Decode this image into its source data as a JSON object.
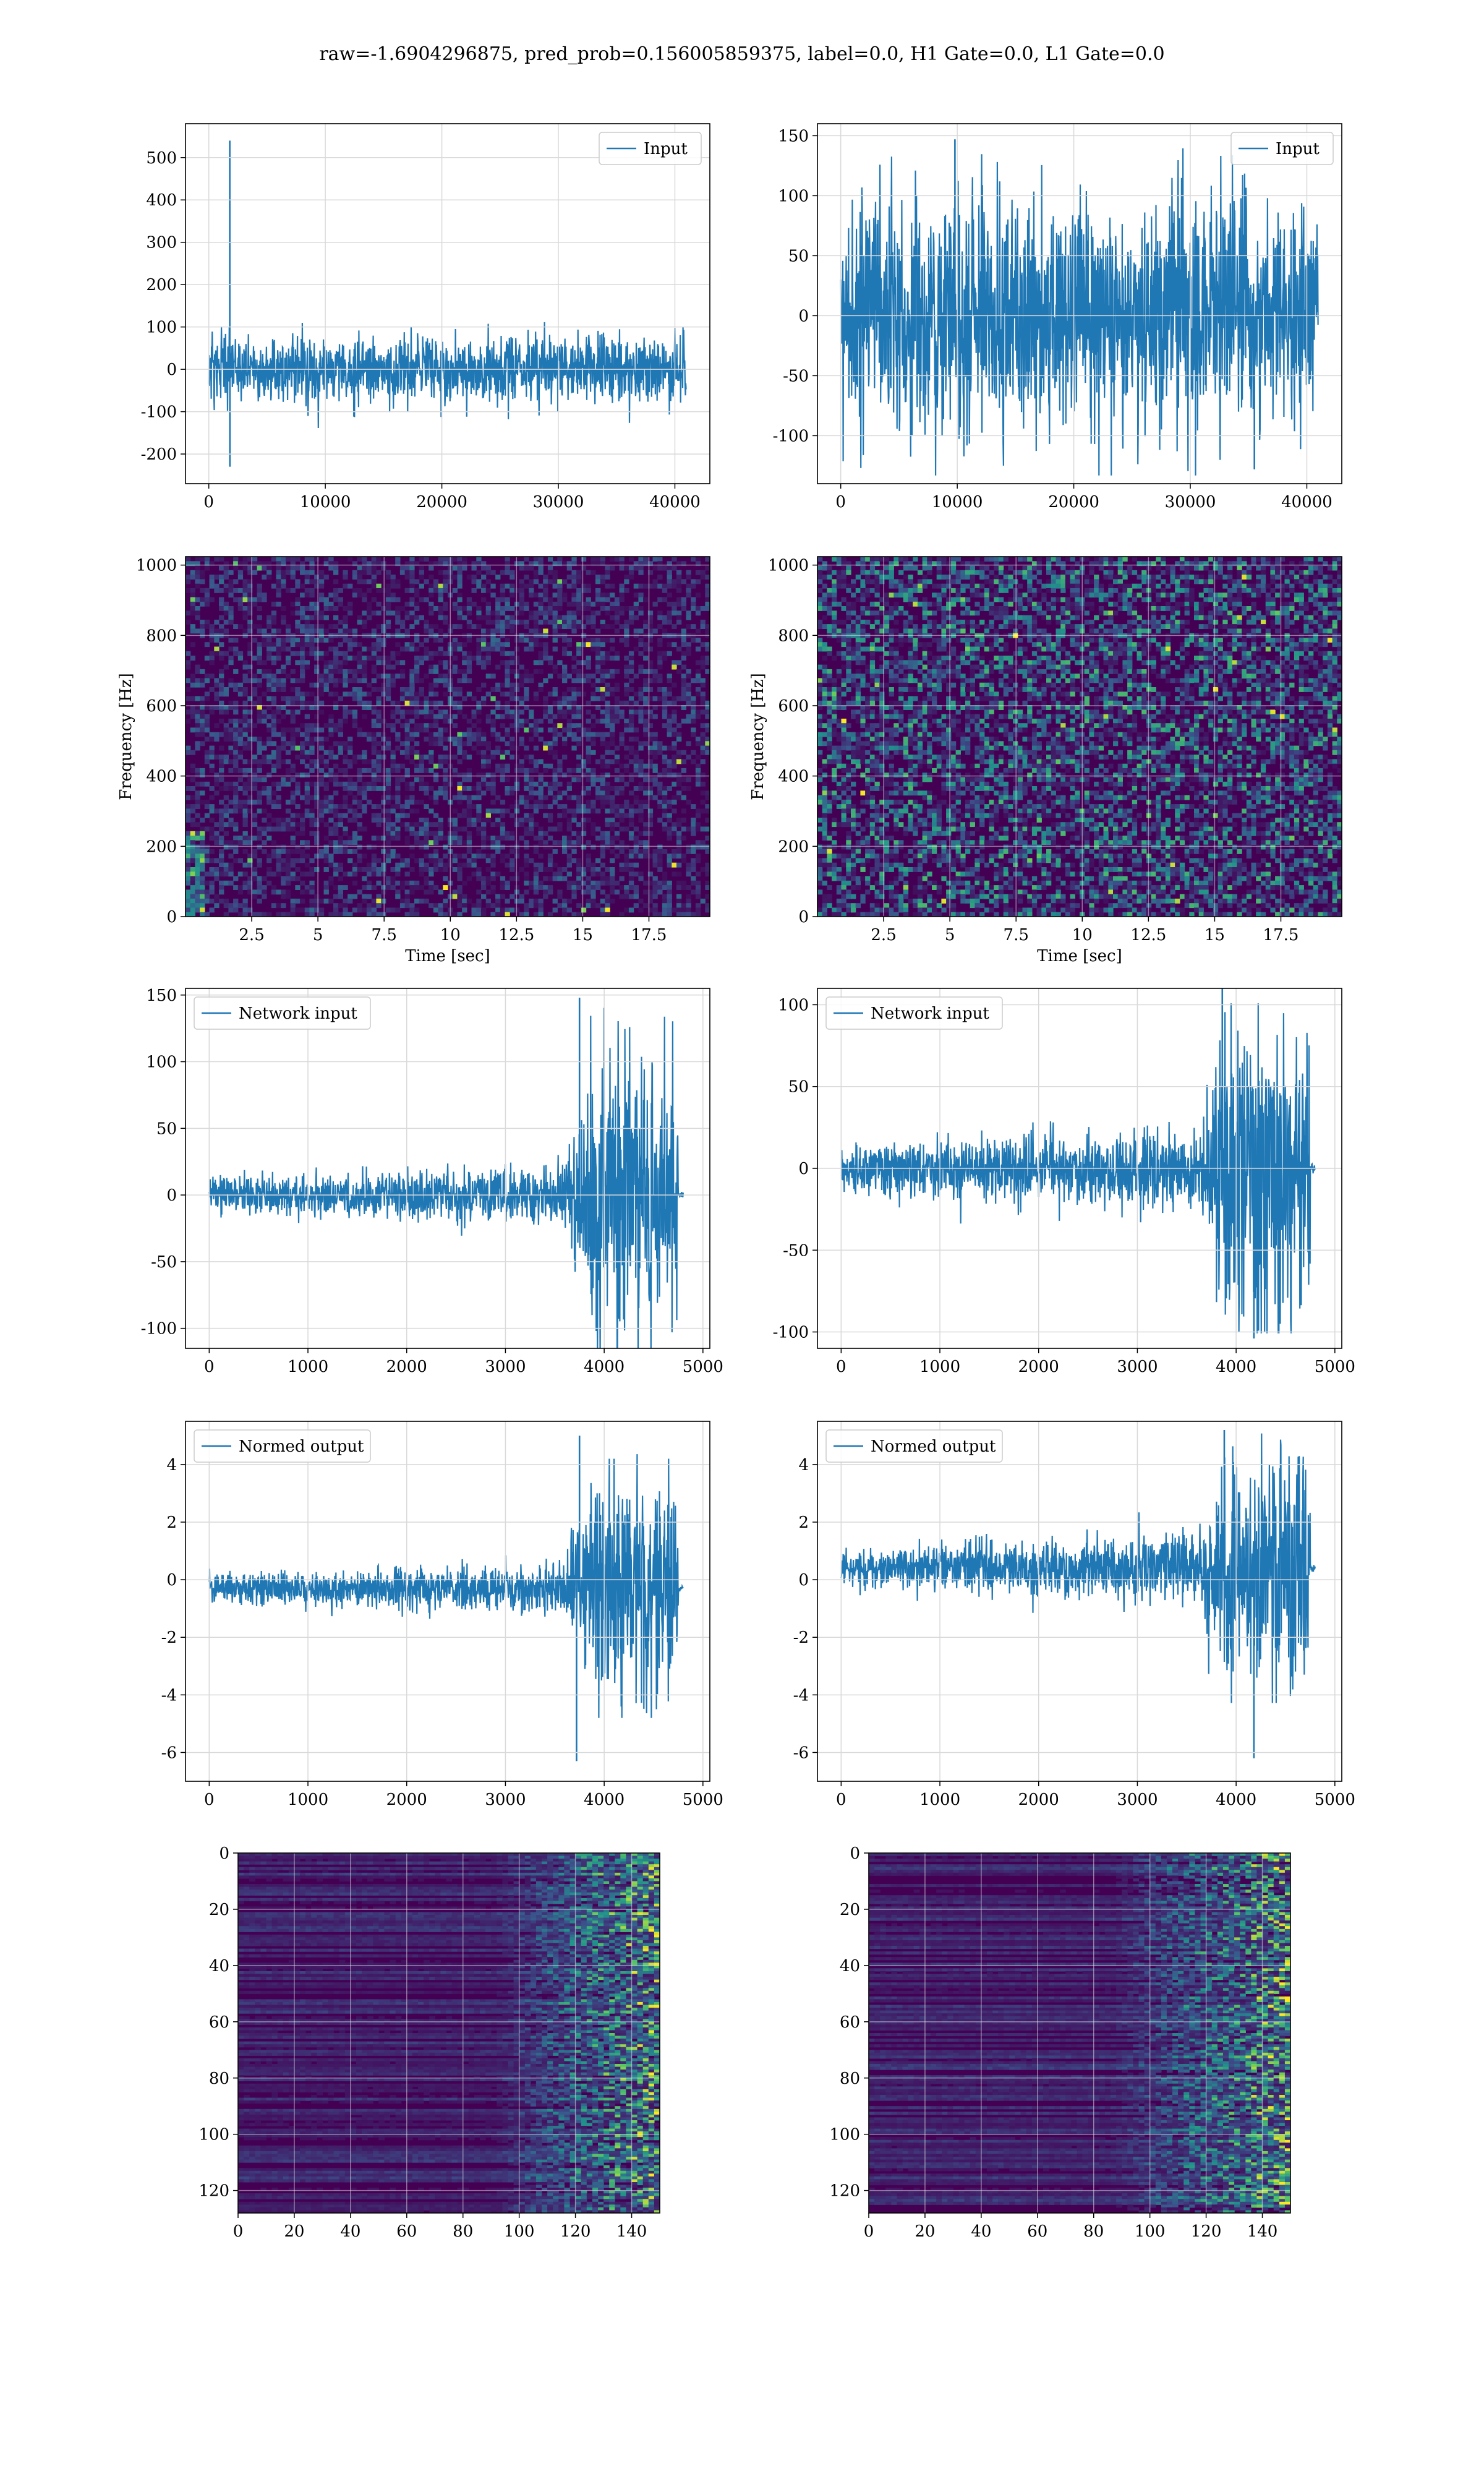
{
  "figure": {
    "title": "raw=-1.6904296875, pred_prob=0.156005859375, label=0.0, H1 Gate=0.0, L1 Gate=0.0"
  },
  "colors": {
    "line": "#1f77b4",
    "grid": "#d9d9d9",
    "viridis_dark": "#440154"
  },
  "chart_data": [
    {
      "id": "input-h1",
      "type": "line",
      "legend": "Input",
      "legend_loc": "upper right",
      "xlim": [
        -2000,
        43000
      ],
      "ylim": [
        -270,
        580
      ],
      "xticks": [
        0,
        10000,
        20000,
        30000,
        40000
      ],
      "yticks": [
        -200,
        -100,
        0,
        100,
        200,
        300,
        400,
        500
      ],
      "signal": {
        "n": 40960,
        "noise_amp": 40,
        "noise_max": 148,
        "spikes": [
          [
            1800,
            540
          ],
          [
            1810,
            -230
          ]
        ],
        "burst": null
      },
      "grid": true
    },
    {
      "id": "input-l1",
      "type": "line",
      "legend": "Input",
      "legend_loc": "upper right",
      "xlim": [
        -2000,
        43000
      ],
      "ylim": [
        -140,
        160
      ],
      "xticks": [
        0,
        10000,
        20000,
        30000,
        40000
      ],
      "yticks": [
        -100,
        -50,
        0,
        50,
        100,
        150
      ],
      "signal": {
        "n": 40960,
        "noise_amp": 50,
        "noise_max": 148,
        "spikes": [
          [
            9800,
            147
          ],
          [
            35500,
            -128
          ]
        ],
        "burst": null
      },
      "grid": true
    },
    {
      "id": "spec-h1",
      "type": "heatmap",
      "xlabel": "Time [sec]",
      "ylabel": "Frequency [Hz]",
      "xlim": [
        0.0,
        19.8
      ],
      "ylim": [
        0,
        1024
      ],
      "xticks": [
        2.5,
        5.0,
        7.5,
        10.0,
        12.5,
        15.0,
        17.5
      ],
      "yticks": [
        0,
        200,
        400,
        600,
        800,
        1000
      ],
      "grid": true,
      "brightness": 0.22,
      "low_freq_event": true
    },
    {
      "id": "spec-l1",
      "type": "heatmap",
      "xlabel": "Time [sec]",
      "ylabel": "Frequency [Hz]",
      "xlim": [
        0.0,
        19.8
      ],
      "ylim": [
        0,
        1024
      ],
      "xticks": [
        2.5,
        5.0,
        7.5,
        10.0,
        12.5,
        15.0,
        17.5
      ],
      "yticks": [
        0,
        200,
        400,
        600,
        800,
        1000
      ],
      "grid": true,
      "brightness": 0.42,
      "low_freq_event": false
    },
    {
      "id": "net-h1",
      "type": "line",
      "legend": "Network input",
      "legend_loc": "upper left",
      "xlim": [
        -240,
        5070
      ],
      "ylim": [
        -115,
        155
      ],
      "xticks": [
        0,
        1000,
        2000,
        3000,
        4000,
        5000
      ],
      "yticks": [
        -100,
        -50,
        0,
        50,
        100,
        150
      ],
      "signal": {
        "n": 4800,
        "noise_amp": 9,
        "noise_max": 148,
        "spikes": [
          [
            3750,
            148
          ],
          [
            3920,
            -102
          ]
        ],
        "burst": {
          "start": 3600,
          "end": 4750,
          "amp": 48
        },
        "tail": [
          4750,
          4800
        ]
      },
      "grid": true
    },
    {
      "id": "net-l1",
      "type": "line",
      "legend": "Network input",
      "legend_loc": "upper left",
      "xlim": [
        -240,
        5070
      ],
      "ylim": [
        -110,
        110
      ],
      "xticks": [
        0,
        1000,
        2000,
        3000,
        4000,
        5000
      ],
      "yticks": [
        -100,
        -50,
        0,
        50,
        100
      ],
      "signal": {
        "n": 4800,
        "noise_amp": 10,
        "noise_max": 112,
        "spikes": [
          [
            3860,
            112
          ],
          [
            4180,
            -104
          ]
        ],
        "burst": {
          "start": 3600,
          "end": 4750,
          "amp": 40
        },
        "tail": [
          4750,
          4800
        ]
      },
      "grid": true
    },
    {
      "id": "norm-h1",
      "type": "line",
      "legend": "Normed output",
      "legend_loc": "upper left",
      "xlim": [
        -240,
        5070
      ],
      "ylim": [
        -7,
        5.5
      ],
      "xticks": [
        0,
        1000,
        2000,
        3000,
        4000,
        5000
      ],
      "yticks": [
        -6,
        -4,
        -2,
        0,
        2,
        4
      ],
      "signal": {
        "n": 4800,
        "noise_amp": 0.35,
        "noise_max": 5,
        "offset": -0.3,
        "spikes": [
          [
            3750,
            5
          ],
          [
            3720,
            -6.3
          ]
        ],
        "burst": {
          "start": 3600,
          "end": 4750,
          "amp": 1.9
        },
        "tail": [
          4750,
          4800
        ]
      },
      "grid": true
    },
    {
      "id": "norm-l1",
      "type": "line",
      "legend": "Normed output",
      "legend_loc": "upper left",
      "xlim": [
        -240,
        5070
      ],
      "ylim": [
        -7,
        5.5
      ],
      "xticks": [
        0,
        1000,
        2000,
        3000,
        4000,
        5000
      ],
      "yticks": [
        -6,
        -4,
        -2,
        0,
        2,
        4
      ],
      "signal": {
        "n": 4800,
        "noise_amp": 0.45,
        "noise_max": 5.2,
        "offset": 0.4,
        "spikes": [
          [
            3880,
            5.2
          ],
          [
            4180,
            -6.2
          ]
        ],
        "burst": {
          "start": 3600,
          "end": 4750,
          "amp": 1.8
        },
        "tail": [
          4750,
          4800
        ]
      },
      "grid": true
    },
    {
      "id": "feat-h1",
      "type": "heatmap",
      "xlim": [
        0,
        150
      ],
      "ylim": [
        128,
        0
      ],
      "xticks": [
        0,
        20,
        40,
        60,
        80,
        100,
        120,
        140
      ],
      "yticks": [
        0,
        20,
        40,
        60,
        80,
        100,
        120
      ],
      "grid": true,
      "active_from": 90
    },
    {
      "id": "feat-l1",
      "type": "heatmap",
      "xlim": [
        0,
        150
      ],
      "ylim": [
        128,
        0
      ],
      "xticks": [
        0,
        20,
        40,
        60,
        80,
        100,
        120,
        140
      ],
      "yticks": [
        0,
        20,
        40,
        60,
        80,
        100,
        120
      ],
      "grid": true,
      "active_from": 85
    }
  ]
}
